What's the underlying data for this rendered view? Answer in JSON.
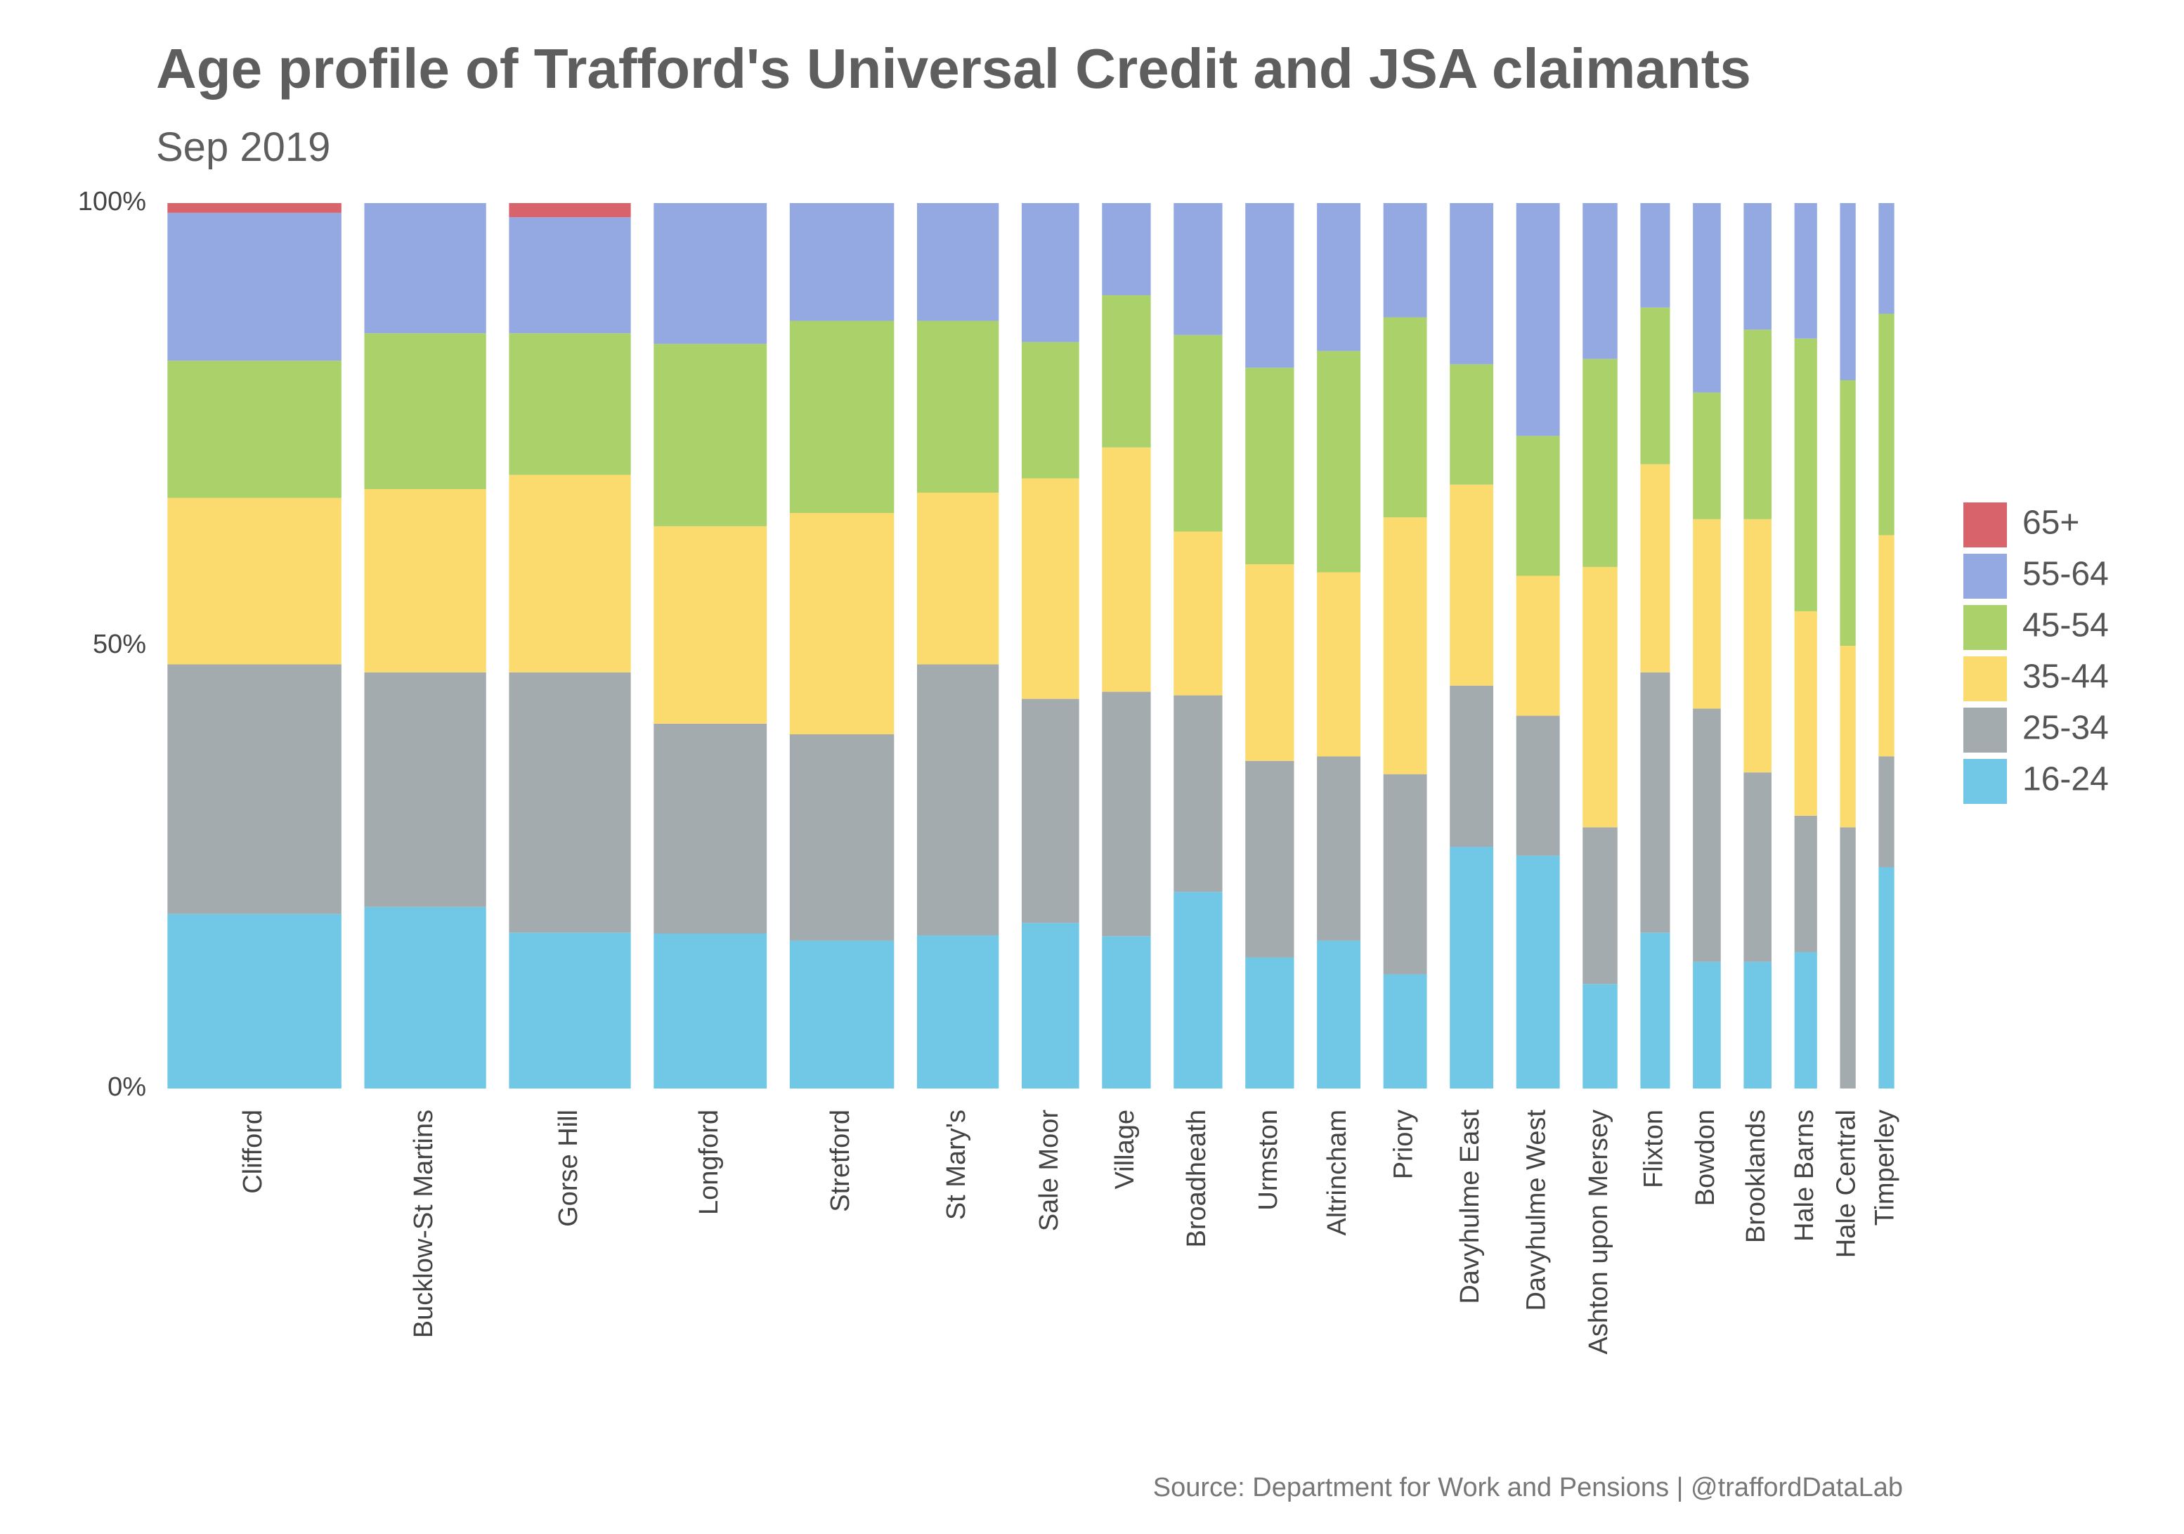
{
  "chart_data": {
    "type": "bar",
    "stacked": "percent",
    "title": "Age profile of Trafford's Universal Credit and JSA claimants",
    "subtitle": "Sep 2019",
    "caption": "Source: Department for Work and Pensions | @traffordDataLab",
    "categories": [
      "Clifford",
      "Bucklow-St Martins",
      "Gorse Hill",
      "Longford",
      "Stretford",
      "St Mary's",
      "Sale Moor",
      "Village",
      "Broadheath",
      "Urmston",
      "Altrincham",
      "Priory",
      "Davyhulme East",
      "Davyhulme West",
      "Ashton upon Mersey",
      "Flixton",
      "Bowdon",
      "Brooklands",
      "Hale Barns",
      "Hale Central",
      "Timperley"
    ],
    "relative_widths": [
      1.0,
      0.7,
      0.7,
      0.65,
      0.6,
      0.47,
      0.33,
      0.28,
      0.28,
      0.28,
      0.25,
      0.25,
      0.25,
      0.25,
      0.2,
      0.17,
      0.16,
      0.16,
      0.13,
      0.09,
      0.09
    ],
    "series": [
      {
        "name": "16-24",
        "color": "#70c8e6",
        "values": [
          19.7,
          20.5,
          17.6,
          17.5,
          16.7,
          17.3,
          18.7,
          17.2,
          22.2,
          14.8,
          16.7,
          12.9,
          27.3,
          26.3,
          11.8,
          17.6,
          14.3,
          14.3,
          15.4,
          0.0,
          25.0
        ]
      },
      {
        "name": "25-34",
        "color": "#a4abae",
        "values": [
          28.2,
          26.5,
          29.4,
          23.7,
          23.3,
          30.6,
          25.3,
          27.6,
          22.2,
          22.2,
          20.8,
          22.6,
          18.2,
          15.8,
          17.7,
          29.4,
          28.6,
          21.4,
          15.4,
          29.5,
          12.5
        ]
      },
      {
        "name": "35-44",
        "color": "#fcdb6e",
        "values": [
          18.8,
          20.7,
          22.3,
          22.3,
          25.0,
          19.4,
          24.9,
          27.6,
          18.5,
          22.2,
          20.8,
          29.0,
          22.7,
          15.8,
          29.4,
          23.5,
          21.4,
          28.6,
          23.1,
          20.5,
          25.0
        ]
      },
      {
        "name": "45-54",
        "color": "#abd16b",
        "values": [
          15.5,
          17.6,
          16.0,
          20.6,
          21.7,
          19.4,
          15.4,
          17.2,
          22.2,
          22.2,
          25.0,
          22.6,
          13.6,
          15.8,
          23.5,
          17.7,
          14.3,
          21.4,
          30.8,
          30.0,
          25.0
        ]
      },
      {
        "name": "55-64",
        "color": "#94a9e1",
        "values": [
          16.7,
          14.7,
          13.1,
          15.9,
          13.3,
          13.3,
          15.7,
          10.4,
          14.9,
          18.6,
          16.7,
          12.9,
          18.2,
          26.3,
          17.6,
          11.8,
          21.4,
          14.3,
          15.3,
          20.0,
          12.5
        ]
      },
      {
        "name": "65+",
        "color": "#d9636b",
        "values": [
          1.1,
          0.0,
          1.6,
          0.0,
          0.0,
          0.0,
          0.0,
          0.0,
          0.0,
          0.0,
          0.0,
          0.0,
          0.0,
          0.0,
          0.0,
          0.0,
          0.0,
          0.0,
          0.0,
          0.0,
          0.0
        ]
      }
    ],
    "y_ticks": [
      "0%",
      "50%",
      "100%"
    ],
    "y_tick_values": [
      0,
      50,
      100
    ],
    "ylim": [
      0,
      100
    ],
    "legend_order": [
      "65+",
      "55-64",
      "45-54",
      "35-44",
      "25-34",
      "16-24"
    ],
    "legend_position": "right",
    "grid": false
  }
}
